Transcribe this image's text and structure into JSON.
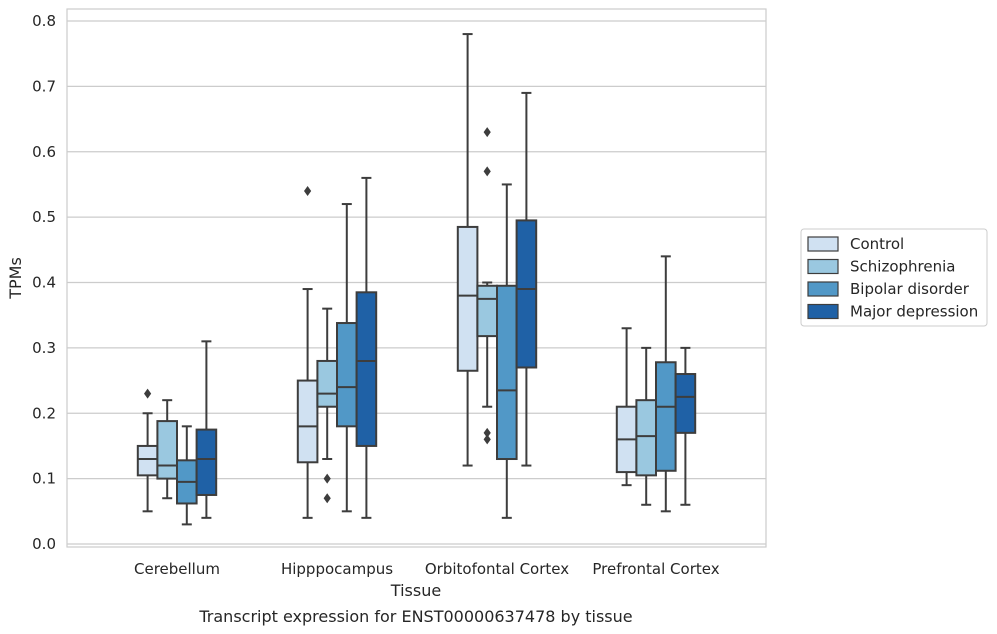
{
  "chart_data": {
    "type": "box",
    "title": "Transcript expression for ENST00000637478 by tissue",
    "xlabel": "Tissue",
    "ylabel": "TPMs",
    "ylim": [
      0,
      0.8
    ],
    "yticks": [
      "0.0",
      "0.1",
      "0.2",
      "0.3",
      "0.4",
      "0.5",
      "0.6",
      "0.7",
      "0.8"
    ],
    "grid": true,
    "legend_position": "right",
    "categories": [
      "Cerebellum",
      "Hipppocampus",
      "Orbitofontal Cortex",
      "Prefrontal Cortex"
    ],
    "series": [
      {
        "name": "Control",
        "color": "#d0e1f2",
        "boxes": [
          {
            "min": 0.05,
            "q1": 0.105,
            "median": 0.13,
            "q3": 0.15,
            "max": 0.2,
            "outliers": [
              0.23
            ]
          },
          {
            "min": 0.04,
            "q1": 0.125,
            "median": 0.18,
            "q3": 0.25,
            "max": 0.39,
            "outliers": [
              0.54
            ]
          },
          {
            "min": 0.12,
            "q1": 0.265,
            "median": 0.38,
            "q3": 0.485,
            "max": 0.78,
            "outliers": []
          },
          {
            "min": 0.09,
            "q1": 0.11,
            "median": 0.16,
            "q3": 0.21,
            "max": 0.33,
            "outliers": []
          }
        ]
      },
      {
        "name": "Schizophrenia",
        "color": "#9ac8e0",
        "boxes": [
          {
            "min": 0.07,
            "q1": 0.1,
            "median": 0.12,
            "q3": 0.188,
            "max": 0.22,
            "outliers": []
          },
          {
            "min": 0.13,
            "q1": 0.21,
            "median": 0.23,
            "q3": 0.28,
            "max": 0.36,
            "outliers": [
              0.1,
              0.07
            ]
          },
          {
            "min": 0.21,
            "q1": 0.318,
            "median": 0.375,
            "q3": 0.395,
            "max": 0.4,
            "outliers": [
              0.63,
              0.57,
              0.17,
              0.16
            ]
          },
          {
            "min": 0.06,
            "q1": 0.105,
            "median": 0.165,
            "q3": 0.22,
            "max": 0.3,
            "outliers": []
          }
        ]
      },
      {
        "name": "Bipolar disorder",
        "color": "#5198c7",
        "boxes": [
          {
            "min": 0.03,
            "q1": 0.062,
            "median": 0.095,
            "q3": 0.128,
            "max": 0.18,
            "outliers": []
          },
          {
            "min": 0.05,
            "q1": 0.18,
            "median": 0.24,
            "q3": 0.338,
            "max": 0.52,
            "outliers": []
          },
          {
            "min": 0.04,
            "q1": 0.13,
            "median": 0.235,
            "q3": 0.395,
            "max": 0.55,
            "outliers": []
          },
          {
            "min": 0.05,
            "q1": 0.112,
            "median": 0.21,
            "q3": 0.278,
            "max": 0.44,
            "outliers": []
          }
        ]
      },
      {
        "name": "Major depression",
        "color": "#1f61a6",
        "boxes": [
          {
            "min": 0.04,
            "q1": 0.075,
            "median": 0.13,
            "q3": 0.175,
            "max": 0.31,
            "outliers": []
          },
          {
            "min": 0.04,
            "q1": 0.15,
            "median": 0.28,
            "q3": 0.385,
            "max": 0.56,
            "outliers": []
          },
          {
            "min": 0.12,
            "q1": 0.27,
            "median": 0.39,
            "q3": 0.495,
            "max": 0.69,
            "outliers": []
          },
          {
            "min": 0.06,
            "q1": 0.17,
            "median": 0.225,
            "q3": 0.26,
            "max": 0.3,
            "outliers": []
          }
        ]
      }
    ]
  }
}
